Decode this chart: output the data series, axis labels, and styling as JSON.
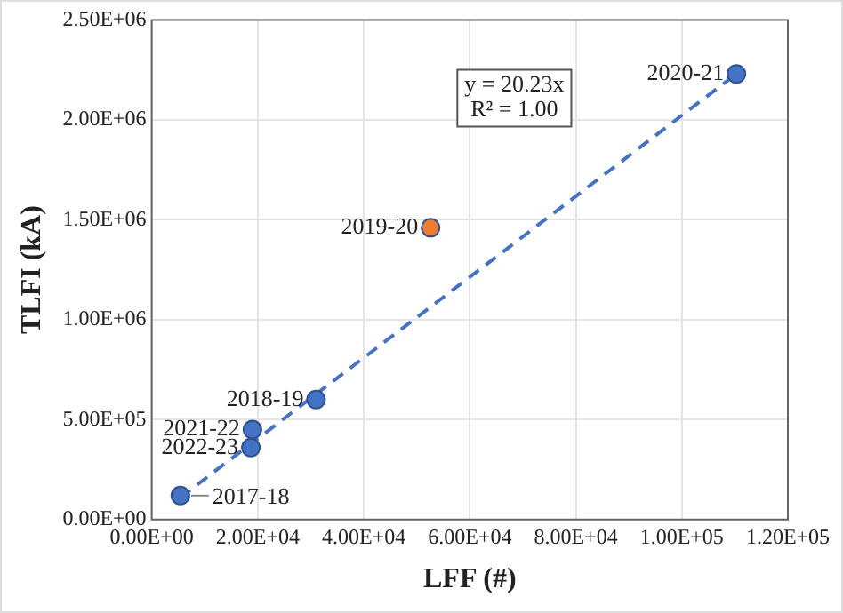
{
  "chart_data": {
    "type": "scatter",
    "xlabel": "LFF (#)",
    "ylabel": "TLFI (kA)",
    "xlim": [
      0,
      120000
    ],
    "xticks": [
      {
        "value": 0,
        "label": "0.00E+00"
      },
      {
        "value": 20000,
        "label": "2.00E+04"
      },
      {
        "value": 40000,
        "label": "4.00E+04"
      },
      {
        "value": 60000,
        "label": "6.00E+04"
      },
      {
        "value": 80000,
        "label": "8.00E+04"
      },
      {
        "value": 100000,
        "label": "1.00E+05"
      },
      {
        "value": 120000,
        "label": "1.20E+05"
      }
    ],
    "ylim": [
      0,
      2500000
    ],
    "yticks": [
      {
        "value": 0,
        "label": "0.00E+00"
      },
      {
        "value": 500000,
        "label": "5.00E+05"
      },
      {
        "value": 1000000,
        "label": "1.00E+06"
      },
      {
        "value": 1500000,
        "label": "1.50E+06"
      },
      {
        "value": 2000000,
        "label": "2.00E+06"
      },
      {
        "value": 2500000,
        "label": "2.50E+06"
      }
    ],
    "grid": true,
    "legend": false,
    "series": [
      {
        "type": "scatter",
        "marker": "circle",
        "x": [
          5400,
          31000,
          52600,
          110300,
          19000,
          18700
        ],
        "values": [
          120000,
          600000,
          1460000,
          2230000,
          450000,
          360000
        ],
        "colors": [
          "#4472c4",
          "#4472c4",
          "#ed7d31",
          "#4472c4",
          "#4472c4",
          "#4472c4"
        ]
      },
      {
        "type": "line",
        "marker": "none",
        "line_style": "dashed",
        "color": "#4472c4",
        "x": [
          5400,
          110300
        ],
        "values": [
          110000,
          2230000
        ]
      }
    ],
    "annotations": [
      {
        "text": "2017-18",
        "x": 5400,
        "y": 120000
      },
      {
        "text": "2018-19",
        "x": 31000,
        "y": 600000
      },
      {
        "text": "2019-20",
        "x": 52600,
        "y": 1460000
      },
      {
        "text": "2020-21",
        "x": 110300,
        "y": 2230000
      },
      {
        "text": "2021-22",
        "x": 19000,
        "y": 450000
      },
      {
        "text": "2022-23",
        "x": 18700,
        "y": 360000
      },
      "y = 20.23x\nR² = 1.00"
    ]
  }
}
